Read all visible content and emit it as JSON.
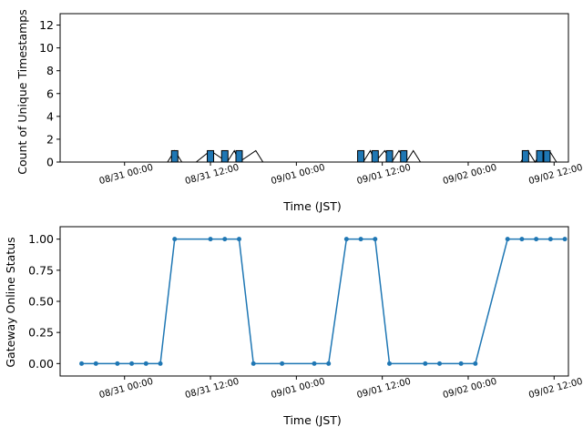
{
  "chart_data": [
    {
      "type": "bar",
      "title": "",
      "xlabel": "Time (JST)",
      "ylabel": "Count of Unique Timestamps",
      "x_tick_labels": [
        "08/31 00:00",
        "08/31 12:00",
        "09/01 00:00",
        "09/01 12:00",
        "09/02 00:00",
        "09/02 12:00"
      ],
      "y_ticks": [
        0,
        2,
        4,
        6,
        8,
        10,
        12
      ],
      "xlim": [
        "2023-08-30 15:00",
        "2023-09-02 14:00"
      ],
      "ylim": [
        0,
        13
      ],
      "x": [
        "2023-08-30 18:00",
        "2023-08-30 19:00",
        "2023-08-30 21:20",
        "2023-08-30 22:20",
        "2023-08-30 23:20",
        "2023-08-31 00:20",
        "2023-08-31 01:00",
        "2023-08-31 03:30",
        "2023-08-31 06:00",
        "2023-08-31 07:00",
        "2023-08-31 08:00",
        "2023-08-31 09:00",
        "2023-08-31 10:00",
        "2023-08-31 12:00",
        "2023-08-31 14:20",
        "2023-08-31 15:20",
        "2023-08-31 16:00",
        "2023-08-31 18:20",
        "2023-08-31 19:20",
        "2023-08-31 20:20",
        "2023-08-31 22:00",
        "2023-09-01 00:20",
        "2023-09-01 02:00",
        "2023-09-01 04:20",
        "2023-09-01 05:20",
        "2023-09-01 06:20",
        "2023-09-01 07:20",
        "2023-09-01 08:20",
        "2023-09-01 09:20",
        "2023-09-01 10:20",
        "2023-09-01 11:00",
        "2023-09-01 12:20",
        "2023-09-01 13:20",
        "2023-09-01 14:20",
        "2023-09-01 15:20",
        "2023-09-01 16:20",
        "2023-09-01 17:20",
        "2023-09-01 18:20",
        "2023-09-01 19:20",
        "2023-09-01 21:20",
        "2023-09-01 22:20",
        "2023-09-01 23:20",
        "2023-09-02 00:20",
        "2023-09-02 01:20",
        "2023-09-02 02:20",
        "2023-09-02 03:20",
        "2023-09-02 04:20",
        "2023-09-02 05:20",
        "2023-09-02 06:20",
        "2023-09-02 07:20",
        "2023-09-02 08:20",
        "2023-09-02 09:20",
        "2023-09-02 10:20",
        "2023-09-02 11:20",
        "2023-09-02 12:20"
      ],
      "values": [
        0,
        0,
        0,
        0,
        0,
        0,
        0,
        0,
        0,
        1,
        0,
        0,
        0,
        1,
        0,
        1,
        0,
        1,
        0,
        0,
        0,
        0,
        0,
        0,
        0,
        0,
        0,
        0,
        0,
        1,
        0,
        1,
        0,
        1,
        0,
        1,
        0,
        0,
        0,
        0,
        0,
        0,
        0,
        0,
        0,
        0,
        0,
        0,
        0,
        0,
        1,
        0,
        1,
        1,
        0
      ],
      "bars": [
        {
          "x": "2023-08-31 07:00",
          "value": 1
        },
        {
          "x": "2023-08-31 12:00",
          "value": 1
        },
        {
          "x": "2023-08-31 14:00",
          "value": 1
        },
        {
          "x": "2023-08-31 16:00",
          "value": 1
        },
        {
          "x": "2023-09-01 09:00",
          "value": 1
        },
        {
          "x": "2023-09-01 11:00",
          "value": 1
        },
        {
          "x": "2023-09-01 13:00",
          "value": 1
        },
        {
          "x": "2023-09-01 15:00",
          "value": 1
        },
        {
          "x": "2023-09-02 08:00",
          "value": 1
        },
        {
          "x": "2023-09-02 10:00",
          "value": 1
        },
        {
          "x": "2023-09-02 11:00",
          "value": 1
        }
      ],
      "bar_color": "#1f77b4",
      "line_color": "#000000",
      "grid": false,
      "legend": "none"
    },
    {
      "type": "line",
      "title": "",
      "xlabel": "Time (JST)",
      "ylabel": "Gateway Online Status",
      "x_tick_labels": [
        "08/31 00:00",
        "08/31 12:00",
        "09/01 00:00",
        "09/01 12:00",
        "09/02 00:00",
        "09/02 12:00"
      ],
      "y_ticks": [
        0.0,
        0.25,
        0.5,
        0.75,
        1.0
      ],
      "y_tick_labels": [
        "0.00",
        "0.25",
        "0.50",
        "0.75",
        "1.00"
      ],
      "xlim": [
        "2023-08-30 15:00",
        "2023-09-02 14:00"
      ],
      "ylim": [
        -0.1,
        1.1
      ],
      "x": [
        "2023-08-30 18:00",
        "2023-08-30 20:00",
        "2023-08-30 23:00",
        "2023-08-31 01:00",
        "2023-08-31 03:00",
        "2023-08-31 05:00",
        "2023-08-31 07:00",
        "2023-08-31 12:00",
        "2023-08-31 14:00",
        "2023-08-31 16:00",
        "2023-08-31 18:00",
        "2023-08-31 22:00",
        "2023-09-01 02:30",
        "2023-09-01 04:30",
        "2023-09-01 07:00",
        "2023-09-01 09:00",
        "2023-09-01 11:00",
        "2023-09-01 13:00",
        "2023-09-01 18:00",
        "2023-09-01 20:00",
        "2023-09-01 23:00",
        "2023-09-02 01:00",
        "2023-09-02 05:30",
        "2023-09-02 07:30",
        "2023-09-02 09:30",
        "2023-09-02 11:30",
        "2023-09-02 13:30"
      ],
      "values": [
        0,
        0,
        0,
        0,
        0,
        0,
        1,
        1,
        1,
        1,
        0,
        0,
        0,
        0,
        1,
        1,
        1,
        0,
        0,
        0,
        0,
        0,
        1,
        1,
        1,
        1,
        1
      ],
      "series": [
        {
          "values": [
            0,
            0,
            0,
            0,
            0,
            0,
            1,
            1,
            1,
            1,
            0,
            0,
            0,
            0,
            1,
            1,
            1,
            0,
            0,
            0,
            0,
            0,
            1,
            1,
            1,
            1,
            1
          ]
        }
      ],
      "line_color": "#1f77b4",
      "marker": "o",
      "grid": false,
      "legend": "none"
    }
  ]
}
